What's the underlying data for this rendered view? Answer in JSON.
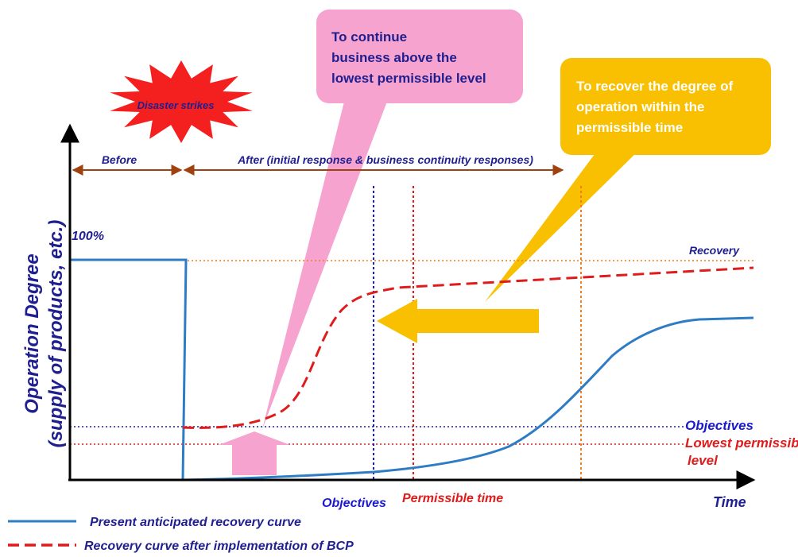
{
  "disaster_label": "Disaster strikes",
  "phases": {
    "before": "Before",
    "after": "After (initial response & business continuity responses)"
  },
  "y_axis": {
    "line1": "Operation Degree",
    "line2": "(supply of products, etc.)",
    "level_100": "100%"
  },
  "x_axis_label": "Time",
  "levels": {
    "recovery": "Recovery",
    "objectives": "Objectives",
    "lowest_line1": "Lowest permissible",
    "lowest_line2": "level"
  },
  "time_markers": {
    "objectives": "Objectives",
    "permissible_time": "Permissible time"
  },
  "callouts": {
    "pink": [
      "To continue",
      "business above the",
      "lowest permissible level"
    ],
    "yellow": [
      "To recover the degree of",
      "operation within the",
      "permissible time"
    ]
  },
  "legend": {
    "present": "Present anticipated recovery curve",
    "bcp": "Recovery curve after implementation of BCP"
  },
  "colors": {
    "navy": "#1f1f8f",
    "blue_curve": "#2e7cc4",
    "red": "#e01b1b",
    "orange": "#f07f1a",
    "brown": "#a0420f",
    "pink": "#f6a3cf",
    "yellow": "#f8c000",
    "starburst": "#f42020"
  }
}
